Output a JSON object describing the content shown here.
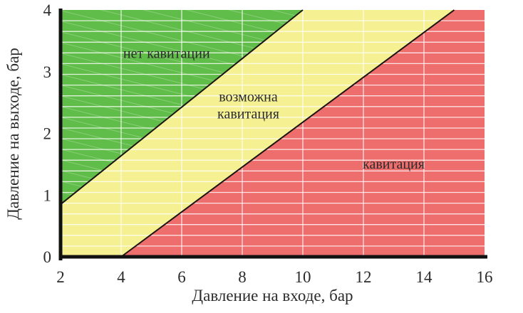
{
  "chart_data": {
    "type": "area",
    "title": "",
    "xlabel": "Давление на входе, бар",
    "ylabel": "Давление на выходе, бар",
    "xlim": [
      2,
      16
    ],
    "ylim": [
      0,
      4
    ],
    "xticks": [
      2,
      4,
      6,
      8,
      10,
      12,
      14,
      16
    ],
    "yticks": [
      0,
      1,
      2,
      3,
      4
    ],
    "axis_color": "#111111",
    "text_color": "#2b2b2b",
    "boundary_color": "#1c1410",
    "grid": {
      "on": true,
      "color": "#ffffff",
      "h_divisions": 23,
      "vertical_lines_at_x": [
        4,
        6,
        8,
        10,
        12,
        14
      ]
    },
    "zones": [
      {
        "name": "no-cavitation",
        "label_lines": [
          "нет кавитации"
        ],
        "color": "#60bd49",
        "polygon": [
          [
            2,
            4
          ],
          [
            10,
            4
          ],
          [
            2,
            0.85
          ]
        ],
        "label_pos": [
          5.5,
          3.3
        ],
        "hatch": true
      },
      {
        "name": "possible-cavitation",
        "label_lines": [
          "возможна",
          "кавитация"
        ],
        "color": "#f5f192",
        "polygon": [
          [
            2,
            0.85
          ],
          [
            10,
            4
          ],
          [
            15,
            4
          ],
          [
            4,
            0
          ],
          [
            2,
            0
          ]
        ],
        "label_pos": [
          8.2,
          2.46
        ],
        "hatch": false
      },
      {
        "name": "cavitation",
        "label_lines": [
          "кавитация"
        ],
        "color": "#ee6d6d",
        "polygon": [
          [
            4,
            0
          ],
          [
            15,
            4
          ],
          [
            16,
            4
          ],
          [
            16,
            0
          ]
        ],
        "label_pos": [
          13.0,
          1.51
        ],
        "hatch": false
      }
    ],
    "boundaries": [
      {
        "name": "no-to-possible",
        "from": [
          2,
          0.85
        ],
        "to": [
          10,
          4
        ]
      },
      {
        "name": "possible-to-cavitation",
        "from": [
          4,
          0
        ],
        "to": [
          15,
          4
        ]
      }
    ]
  }
}
